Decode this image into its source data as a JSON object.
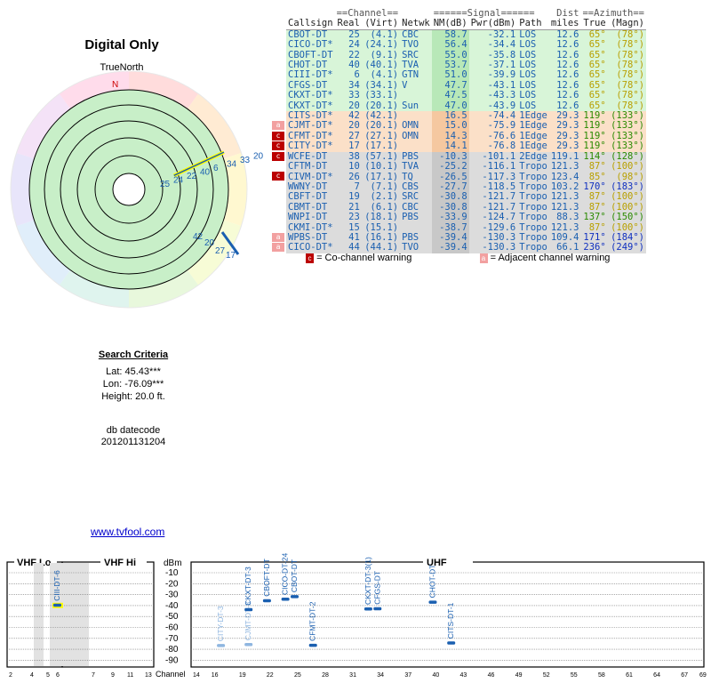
{
  "page_title": "Digital Only",
  "compass_label": "TrueNorth",
  "north_mark": "N",
  "colors": {
    "link": "#0000cc",
    "callsign": "#1a5fb0",
    "az_yellow": "#b8a000",
    "az_green": "#2a8a00",
    "az_blue": "#1030c0",
    "cochannel": "#b00000",
    "adjacent": "#f2a0a0"
  },
  "table_headers": {
    "group_channel": "==Channel==",
    "group_signal": "======Signal======",
    "group_azimuth": "==Azimuth==",
    "group_dist": "Dist",
    "callsign": "Callsign",
    "real": "Real",
    "virt": "(Virt)",
    "netwk": "Netwk",
    "nm": "NM(dB)",
    "pwr": "Pwr(dBm)",
    "path": "Path",
    "miles": "miles",
    "true": "True",
    "magn": "(Magn)"
  },
  "stations": [
    {
      "tag": "",
      "callsign": "CBOT-DT",
      "real": "25",
      "virt": "(4.1)",
      "netwk": "CBC",
      "nm": "58.7",
      "pwr": "-32.1",
      "path": "LOS",
      "dist": "12.6",
      "az_true": "65°",
      "az_magn": "(78°)",
      "band": "green",
      "az_color": "yellow"
    },
    {
      "tag": "",
      "callsign": "CICO-DT*",
      "real": "24",
      "virt": "(24.1)",
      "netwk": "TVO",
      "nm": "56.4",
      "pwr": "-34.4",
      "path": "LOS",
      "dist": "12.6",
      "az_true": "65°",
      "az_magn": "(78°)",
      "band": "green",
      "az_color": "yellow"
    },
    {
      "tag": "",
      "callsign": "CBOFT-DT",
      "real": "22",
      "virt": "(9.1)",
      "netwk": "SRC",
      "nm": "55.0",
      "pwr": "-35.8",
      "path": "LOS",
      "dist": "12.6",
      "az_true": "65°",
      "az_magn": "(78°)",
      "band": "green",
      "az_color": "yellow"
    },
    {
      "tag": "",
      "callsign": "CHOT-DT",
      "real": "40",
      "virt": "(40.1)",
      "netwk": "TVA",
      "nm": "53.7",
      "pwr": "-37.1",
      "path": "LOS",
      "dist": "12.6",
      "az_true": "65°",
      "az_magn": "(78°)",
      "band": "green",
      "az_color": "yellow"
    },
    {
      "tag": "",
      "callsign": "CIII-DT*",
      "real": "6",
      "virt": "(4.1)",
      "netwk": "GTN",
      "nm": "51.0",
      "pwr": "-39.9",
      "path": "LOS",
      "dist": "12.6",
      "az_true": "65°",
      "az_magn": "(78°)",
      "band": "green",
      "az_color": "yellow"
    },
    {
      "tag": "",
      "callsign": "CFGS-DT",
      "real": "34",
      "virt": "(34.1)",
      "netwk": "V",
      "nm": "47.7",
      "pwr": "-43.1",
      "path": "LOS",
      "dist": "12.6",
      "az_true": "65°",
      "az_magn": "(78°)",
      "band": "green",
      "az_color": "yellow"
    },
    {
      "tag": "",
      "callsign": "CKXT-DT*",
      "real": "33",
      "virt": "(33.1)",
      "netwk": "",
      "nm": "47.5",
      "pwr": "-43.3",
      "path": "LOS",
      "dist": "12.6",
      "az_true": "65°",
      "az_magn": "(78°)",
      "band": "green",
      "az_color": "yellow"
    },
    {
      "tag": "",
      "callsign": "CKXT-DT*",
      "real": "20",
      "virt": "(20.1)",
      "netwk": "Sun",
      "nm": "47.0",
      "pwr": "-43.9",
      "path": "LOS",
      "dist": "12.6",
      "az_true": "65°",
      "az_magn": "(78°)",
      "band": "green",
      "az_color": "yellow"
    },
    {
      "tag": "",
      "callsign": "CITS-DT*",
      "real": "42",
      "virt": "(42.1)",
      "netwk": "",
      "nm": "16.5",
      "pwr": "-74.4",
      "path": "1Edge",
      "dist": "29.3",
      "az_true": "119°",
      "az_magn": "(133°)",
      "band": "orange",
      "az_color": "green"
    },
    {
      "tag": "a",
      "callsign": "CJMT-DT*",
      "real": "20",
      "virt": "(20.1)",
      "netwk": "OMN",
      "nm": "15.0",
      "pwr": "-75.9",
      "path": "1Edge",
      "dist": "29.3",
      "az_true": "119°",
      "az_magn": "(133°)",
      "band": "orange",
      "az_color": "green"
    },
    {
      "tag": "c",
      "callsign": "CFMT-DT*",
      "real": "27",
      "virt": "(27.1)",
      "netwk": "OMN",
      "nm": "14.3",
      "pwr": "-76.6",
      "path": "1Edge",
      "dist": "29.3",
      "az_true": "119°",
      "az_magn": "(133°)",
      "band": "orange",
      "az_color": "green"
    },
    {
      "tag": "c",
      "callsign": "CITY-DT*",
      "real": "17",
      "virt": "(17.1)",
      "netwk": "",
      "nm": "14.1",
      "pwr": "-76.8",
      "path": "1Edge",
      "dist": "29.3",
      "az_true": "119°",
      "az_magn": "(133°)",
      "band": "orange",
      "az_color": "green"
    },
    {
      "tag": "c",
      "callsign": "WCFE-DT",
      "real": "38",
      "virt": "(57.1)",
      "netwk": "PBS",
      "nm": "-10.3",
      "pwr": "-101.1",
      "path": "2Edge",
      "dist": "119.1",
      "az_true": "114°",
      "az_magn": "(128°)",
      "band": "grey",
      "az_color": "green"
    },
    {
      "tag": "",
      "callsign": "CFTM-DT",
      "real": "10",
      "virt": "(10.1)",
      "netwk": "TVA",
      "nm": "-25.2",
      "pwr": "-116.1",
      "path": "Tropo",
      "dist": "121.3",
      "az_true": "87°",
      "az_magn": "(100°)",
      "band": "grey",
      "az_color": "yellow"
    },
    {
      "tag": "c",
      "callsign": "CIVM-DT*",
      "real": "26",
      "virt": "(17.1)",
      "netwk": "TQ",
      "nm": "-26.5",
      "pwr": "-117.3",
      "path": "Tropo",
      "dist": "123.4",
      "az_true": "85°",
      "az_magn": "(98°)",
      "band": "grey",
      "az_color": "yellow"
    },
    {
      "tag": "",
      "callsign": "WWNY-DT",
      "real": "7",
      "virt": "(7.1)",
      "netwk": "CBS",
      "nm": "-27.7",
      "pwr": "-118.5",
      "path": "Tropo",
      "dist": "103.2",
      "az_true": "170°",
      "az_magn": "(183°)",
      "band": "grey",
      "az_color": "blue"
    },
    {
      "tag": "",
      "callsign": "CBFT-DT",
      "real": "19",
      "virt": "(2.1)",
      "netwk": "SRC",
      "nm": "-30.8",
      "pwr": "-121.7",
      "path": "Tropo",
      "dist": "121.3",
      "az_true": "87°",
      "az_magn": "(100°)",
      "band": "grey",
      "az_color": "yellow"
    },
    {
      "tag": "",
      "callsign": "CBMT-DT",
      "real": "21",
      "virt": "(6.1)",
      "netwk": "CBC",
      "nm": "-30.8",
      "pwr": "-121.7",
      "path": "Tropo",
      "dist": "121.3",
      "az_true": "87°",
      "az_magn": "(100°)",
      "band": "grey",
      "az_color": "yellow"
    },
    {
      "tag": "",
      "callsign": "WNPI-DT",
      "real": "23",
      "virt": "(18.1)",
      "netwk": "PBS",
      "nm": "-33.9",
      "pwr": "-124.7",
      "path": "Tropo",
      "dist": "88.3",
      "az_true": "137°",
      "az_magn": "(150°)",
      "band": "grey",
      "az_color": "green"
    },
    {
      "tag": "",
      "callsign": "CKMI-DT*",
      "real": "15",
      "virt": "(15.1)",
      "netwk": "",
      "nm": "-38.7",
      "pwr": "-129.6",
      "path": "Tropo",
      "dist": "121.3",
      "az_true": "87°",
      "az_magn": "(100°)",
      "band": "grey",
      "az_color": "yellow"
    },
    {
      "tag": "a",
      "callsign": "WPBS-DT",
      "real": "41",
      "virt": "(16.1)",
      "netwk": "PBS",
      "nm": "-39.4",
      "pwr": "-130.3",
      "path": "Tropo",
      "dist": "109.4",
      "az_true": "171°",
      "az_magn": "(184°)",
      "band": "grey",
      "az_color": "blue"
    },
    {
      "tag": "a",
      "callsign": "CICO-DT*",
      "real": "44",
      "virt": "(44.1)",
      "netwk": "TVO",
      "nm": "-39.4",
      "pwr": "-130.3",
      "path": "Tropo",
      "dist": "66.1",
      "az_true": "236°",
      "az_magn": "(249°)",
      "band": "grey",
      "az_color": "blue"
    }
  ],
  "legend": {
    "cochannel_tag": "c",
    "cochannel": "= Co-channel warning",
    "adjacent_tag": "a",
    "adjacent": "= Adjacent channel warning"
  },
  "radar_labels": {
    "group_65": [
      "25",
      "24",
      "22",
      "40",
      "6",
      "34",
      "33",
      "20"
    ],
    "group_119": [
      "42",
      "20",
      "27",
      "17"
    ]
  },
  "search_criteria": {
    "heading": "Search Criteria",
    "lat": "Lat: 45.43***",
    "lon": "Lon: -76.09***",
    "height": "Height: 20.0 ft."
  },
  "db": {
    "label": "db datecode",
    "value": "201201131204"
  },
  "link": "www.tvfool.com",
  "spectrum": {
    "vhf_lo": "VHF Lo",
    "vhf_hi": "VHF Hi",
    "uhf": "UHF",
    "dbm_label": "dBm",
    "channel_label": "Channel",
    "dbm_ticks": [
      "-10",
      "-20",
      "-30",
      "-40",
      "-50",
      "-60",
      "-70",
      "-80",
      "-90"
    ],
    "vhf_lo_ticks": [
      "2",
      "4",
      "5",
      "6"
    ],
    "vhf_hi_ticks": [
      "7",
      "9",
      "11",
      "13"
    ],
    "uhf_ticks": [
      "14",
      "16",
      "19",
      "22",
      "25",
      "28",
      "31",
      "34",
      "37",
      "40",
      "43",
      "46",
      "49",
      "52",
      "55",
      "58",
      "61",
      "64",
      "67",
      "69"
    ],
    "markers": [
      {
        "label": "CIII-DT-6",
        "channel": 6,
        "band": "vhf_lo",
        "pwr": -39.9,
        "color": "#1a5fb0",
        "highlight": true
      },
      {
        "label": "CITY-DT-3",
        "channel": 17,
        "band": "uhf",
        "pwr": -76.8,
        "color": "#8fb6e0"
      },
      {
        "label": "CJMT-DT-3",
        "channel": 20,
        "band": "uhf",
        "pwr": -75.9,
        "color": "#8fb6e0"
      },
      {
        "label": "CKXT-DT-3",
        "channel": 20,
        "band": "uhf",
        "pwr": -43.9,
        "color": "#1a5fb0"
      },
      {
        "label": "CBOFT-DT",
        "channel": 22,
        "band": "uhf",
        "pwr": -35.8,
        "color": "#1a5fb0"
      },
      {
        "label": "CICO-DT-24",
        "channel": 24,
        "band": "uhf",
        "pwr": -34.4,
        "color": "#1a5fb0"
      },
      {
        "label": "CBOT-DT",
        "channel": 25,
        "band": "uhf",
        "pwr": -32.1,
        "color": "#1a5fb0"
      },
      {
        "label": "CFMT-DT-2",
        "channel": 27,
        "band": "uhf",
        "pwr": -76.6,
        "color": "#1a5fb0"
      },
      {
        "label": "CKXT-DT-3(1)",
        "channel": 33,
        "band": "uhf",
        "pwr": -43.3,
        "color": "#1a5fb0"
      },
      {
        "label": "CFGS-DT",
        "channel": 34,
        "band": "uhf",
        "pwr": -43.1,
        "color": "#1a5fb0"
      },
      {
        "label": "CHOT-DT",
        "channel": 40,
        "band": "uhf",
        "pwr": -37.1,
        "color": "#1a5fb0"
      },
      {
        "label": "CITS-DT-1",
        "channel": 42,
        "band": "uhf",
        "pwr": -74.4,
        "color": "#1a5fb0"
      }
    ]
  }
}
